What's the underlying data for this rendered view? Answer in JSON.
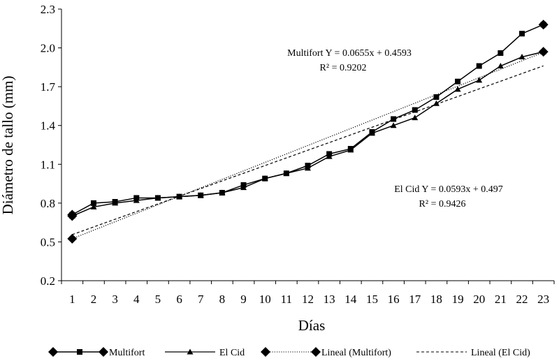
{
  "chart_data": {
    "type": "line",
    "title": "",
    "xlabel": "Días",
    "ylabel": "Diámetro de tallo (mm)",
    "ylim": [
      0.2,
      2.3
    ],
    "xlim": [
      1,
      23
    ],
    "yticks": [
      "0.2",
      "0.5",
      "0.8",
      "1.1",
      "1.4",
      "1.7",
      "2.0",
      "2.3"
    ],
    "categories": [
      "1",
      "2",
      "3",
      "4",
      "5",
      "6",
      "7",
      "8",
      "9",
      "10",
      "11",
      "12",
      "13",
      "14",
      "15",
      "16",
      "17",
      "18",
      "19",
      "20",
      "21",
      "22",
      "23"
    ],
    "series": [
      {
        "name": "Multifort",
        "color": "#000000",
        "marker": "square",
        "values": [
          0.71,
          0.8,
          0.81,
          0.84,
          0.84,
          0.85,
          0.86,
          0.88,
          0.94,
          0.99,
          1.03,
          1.09,
          1.18,
          1.22,
          1.35,
          1.45,
          1.52,
          1.62,
          1.74,
          1.86,
          1.96,
          2.11,
          2.18
        ]
      },
      {
        "name": "El Cid",
        "color": "#000000",
        "marker": "triangle",
        "values": [
          0.7,
          0.77,
          0.8,
          0.82,
          0.84,
          0.85,
          0.86,
          0.88,
          0.92,
          0.99,
          1.03,
          1.07,
          1.16,
          1.21,
          1.34,
          1.4,
          1.46,
          1.57,
          1.68,
          1.75,
          1.86,
          1.93,
          1.97
        ]
      }
    ],
    "trendlines": [
      {
        "name": "Lineal (Multifort)",
        "series": "Multifort",
        "slope": 0.0655,
        "intercept": 0.4593,
        "style": "dotted"
      },
      {
        "name": "Lineal (El Cid)",
        "series": "El Cid",
        "slope": 0.0593,
        "intercept": 0.497,
        "style": "dashed"
      }
    ],
    "annotations": [
      {
        "id": "multifort",
        "equation": "Multifort Y = 0.0655x + 0.4593",
        "r2": "R² = 0.9202"
      },
      {
        "id": "elcid",
        "equation": "El Cid Y = 0.0593x + 0.497",
        "r2": "R² = 0.9426"
      }
    ],
    "legend": {
      "position": "bottom",
      "items": [
        "Multifort",
        "El Cid",
        "Lineal (Multifort)",
        "Lineal (El Cid)"
      ]
    }
  }
}
